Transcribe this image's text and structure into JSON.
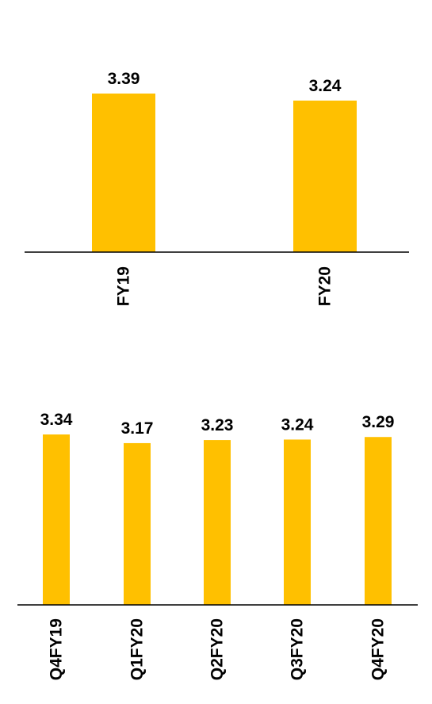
{
  "chart_data": [
    {
      "type": "bar",
      "categories": [
        "FY19",
        "FY20"
      ],
      "values": [
        3.39,
        3.24
      ],
      "title": "",
      "xlabel": "",
      "ylabel": "",
      "ylim": [
        0,
        3.39
      ],
      "grid": false,
      "legend": "none",
      "bar_color": "#FFC000"
    },
    {
      "type": "bar",
      "categories": [
        "Q4FY19",
        "Q1FY20",
        "Q2FY20",
        "Q3FY20",
        "Q4FY20"
      ],
      "values": [
        3.34,
        3.17,
        3.23,
        3.24,
        3.29
      ],
      "title": "",
      "xlabel": "",
      "ylabel": "",
      "ylim": [
        0,
        3.34
      ],
      "grid": false,
      "legend": "none",
      "bar_color": "#FFC000"
    }
  ]
}
